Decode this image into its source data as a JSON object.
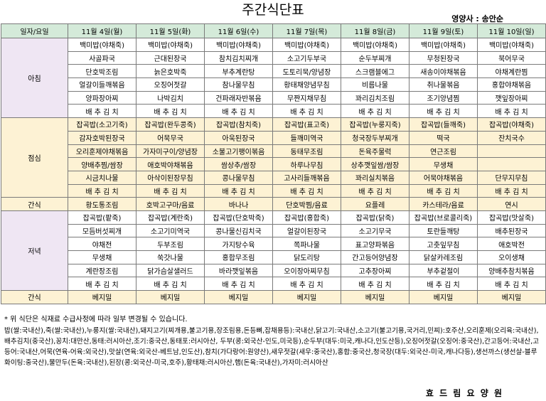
{
  "title": "주간식단표",
  "dietitian": "영양사 : 송안순",
  "header": [
    "일자/요일",
    "11월 4일(월)",
    "11월 5일(화)",
    "11월 6일(수)",
    "11월 7일(목)",
    "11월 8일(금)",
    "11월 9일(토)",
    "11월 10일(일)"
  ],
  "breakfast": {
    "label": "아침",
    "rows": [
      [
        "백미밥(야채죽)",
        "백미밥(야채죽)",
        "백미밥(야채죽)",
        "백미밥(야채죽)",
        "백미밥(야채죽)",
        "백미밥(야채죽)",
        "백미밥(야채죽)"
      ],
      [
        "사골파국",
        "근대된장국",
        "참치김치찌개",
        "소고기두부국",
        "순두부찌개",
        "무청된장국",
        "북어무국"
      ],
      [
        "단호박조림",
        "늙은호박죽",
        "부추계란탕",
        "도토리묵/양념장",
        "스크램블에그",
        "새송이야채볶음",
        "야채계란찜"
      ],
      [
        "얼갈이들깨볶음",
        "오징어젓갈",
        "참나물무침",
        "황태채양념무침",
        "비름나물",
        "취나물볶음",
        "홍합야채볶음"
      ],
      [
        "양파장아찌",
        "나박김치",
        "건파래자반볶음",
        "무짠지채무침",
        "꽈리김치조림",
        "조기양념찜",
        "깻잎장아찌"
      ],
      [
        "배 추 김 치",
        "배 추 김 치",
        "배 추 김 치",
        "배 추 김 치",
        "배 추 김 치",
        "배 추 김 치",
        "배 추 김 치"
      ]
    ]
  },
  "lunch": {
    "label": "점심",
    "rows": [
      [
        "잡곡밥(소고기죽)",
        "잡곡밥(완두콩죽)",
        "잡곡밥(참치죽)",
        "잡곡밥(표고죽)",
        "잡곡밥(누룽지죽)",
        "잡곡밥(들깨죽)",
        "잡곡밥(야채죽)"
      ],
      [
        "감자호박된장국",
        "어묵무국",
        "아욱된장국",
        "들깨미역국",
        "청국장두부찌개",
        "떡국",
        "잔치국수"
      ],
      [
        "오리훈제야채볶음",
        "가자미구이/양념장",
        "소불고기팽이볶음",
        "동태무조림",
        "돈육주물럭",
        "연근조림",
        ""
      ],
      [
        "양배추찜/쌈장",
        "애호박야채볶음",
        "쌈상추/쌈장",
        "하루나무침",
        "상추깻잎쌈/쌈장",
        "무생채",
        ""
      ],
      [
        "시금치나물",
        "아삭이된장무침",
        "콩나물무침",
        "고사리들깨볶음",
        "꽈리실치볶음",
        "어묵야채볶음",
        "단무지무침"
      ],
      [
        "배 추 김 치",
        "배 추 김 치",
        "배 추 김 치",
        "배 추 김 치",
        "배 추 김 치",
        "배 추 김 치",
        "배 추 김 치"
      ]
    ]
  },
  "snack1": {
    "label": "간식",
    "items": [
      "황도통조림",
      "호박고구마/음료",
      "바나나",
      "단호박찜/음료",
      "요플레",
      "카스테라/음료",
      "연시"
    ]
  },
  "dinner": {
    "label": "저녁",
    "rows": [
      [
        "잡곡밥(팥죽)",
        "잡곡밥(계란죽)",
        "잡곡밥(단호박죽)",
        "잡곡밥(홍합죽)",
        "잡곡밥(닭죽)",
        "잡곡밥(브로콜리죽)",
        "잡곡밥(맛살죽)"
      ],
      [
        "모듬버섯찌개",
        "소고기미역국",
        "콩나물신김치국",
        "얼갈이된장국",
        "소고기무국",
        "토란들깨탕",
        "배추된장국"
      ],
      [
        "야채전",
        "두부조림",
        "가지탕수육",
        "쪽파나물",
        "표고양파볶음",
        "고춧잎무침",
        "애호박전"
      ],
      [
        "무생채",
        "쑥갓나물",
        "홍합무조림",
        "닭도리탕",
        "간고등어양념장",
        "닭살카레조림",
        "오이생채"
      ],
      [
        "계란장조림",
        "닭가슴살샐러드",
        "바라깻잎볶음",
        "오이장아찌무침",
        "고추장아찌",
        "부추겉절이",
        "양배추참치볶음"
      ],
      [
        "배 추 김 치",
        "배 추 김 치",
        "배 추 김 치",
        "배 추 김 치",
        "배 추 김 치",
        "배 추 김 치",
        "배 추 김 치"
      ]
    ]
  },
  "snack2": {
    "label": "간식",
    "items": [
      "베지밀",
      "베지밀",
      "베지밀",
      "베지밀",
      "베지밀",
      "베지밀",
      "베지밀"
    ]
  },
  "note": "* 위 식단은 식재료 수급사정에 따라 일부 변경될 수 있습니다.",
  "origin": "밥(쌀:국내산),죽(쌀:국내산),누룽지(쌀:국내산),돼지고기(찌개용,불고기용,장조림용,돈등뼈,잡채용등):국내산,닭고기:국내산,소고기(불고기용,국거리,민찌):호주산,오리훈제(오리육:국내산),배추김치(중국산),꽁치:대만산,동태:러시아산,조기:중국산,동태포:러시아산, 두부(콩:외국산-인도,미국등),순두부(대두:미국,캐나다,인도산등),오징어젓갈(오징어:중국산),간고등어:국내산,고등어:국내산,어묵(연육-어육:외국산),맛살(연육:외국산-베트남,인도산),참치(가다랑어:원양산),새우젓갈(새우:중국산),홍합:중국산,청국장(대두:외국산-미국,캐나다등),생선까스(생선살-블루화이팅:중국산),물만두(돈육:국내산),된장(콩:외국산-미국,호주),황태채:러시아산,햄(돈육:국내산),가자미:러시아산",
  "facility": "효 드 림 요 양 원"
}
